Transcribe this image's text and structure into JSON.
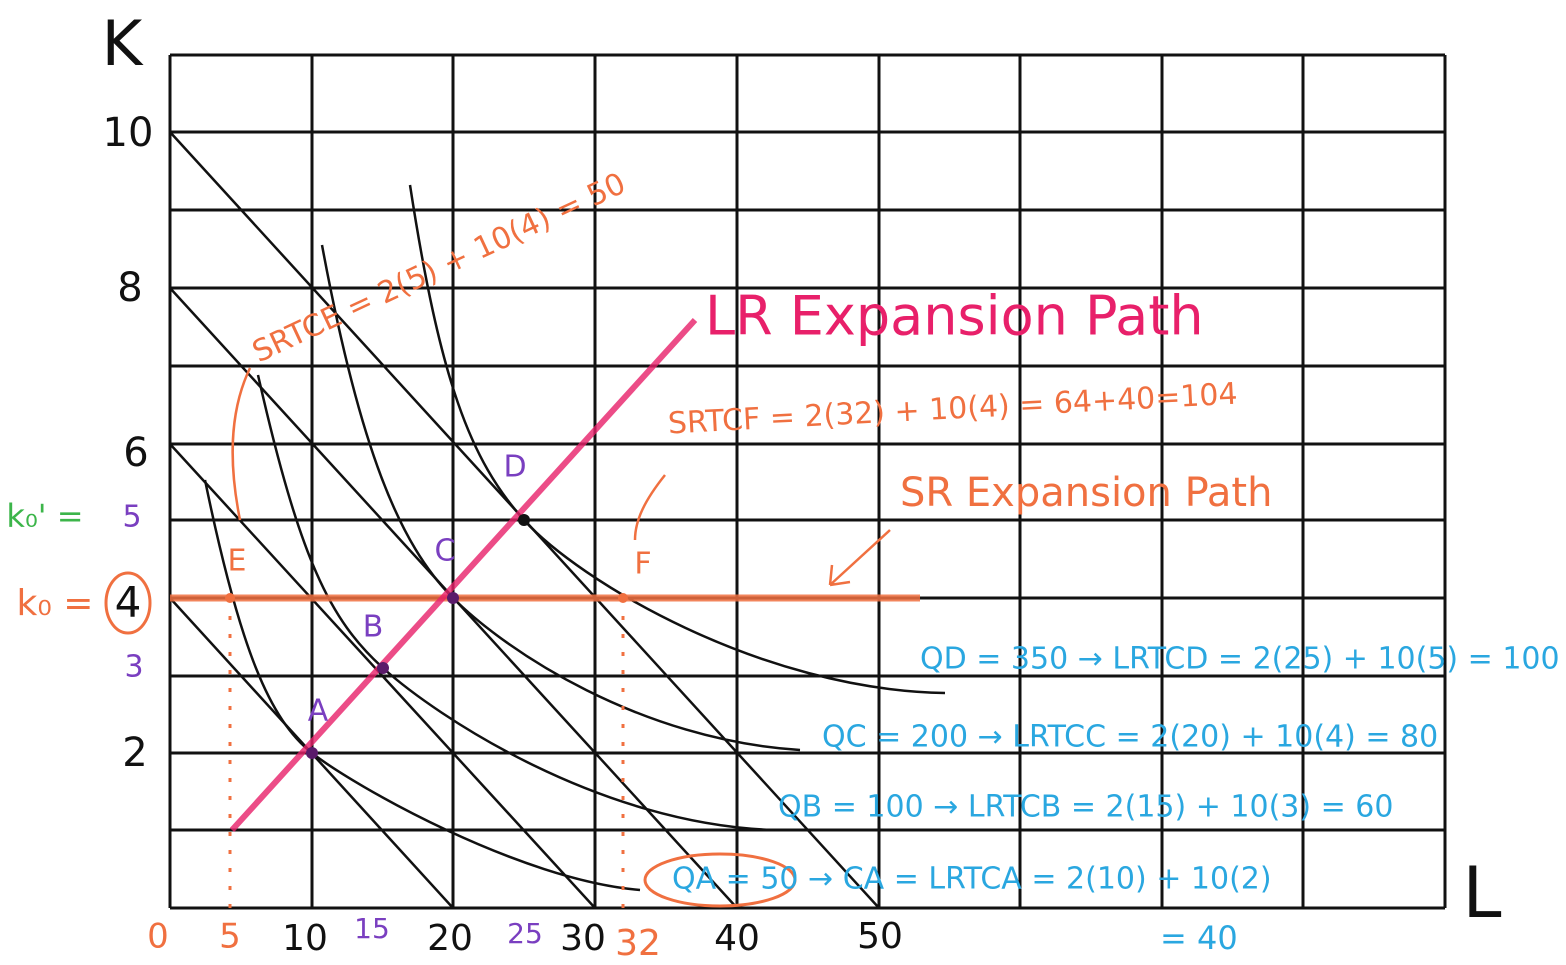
{
  "axes": {
    "y_label": "K",
    "x_label": "L",
    "y_ticks": [
      "10",
      "8",
      "6",
      "2"
    ],
    "y_ticks_minor": [
      "5",
      "3"
    ],
    "x_ticks": [
      "0",
      "5",
      "10",
      "15",
      "20",
      "25",
      "30",
      "32",
      "40",
      "50"
    ],
    "k0_prime": "k₀' =",
    "k0": "k₀ =",
    "k0_value": "4"
  },
  "points": [
    "A",
    "B",
    "C",
    "D",
    "E",
    "F"
  ],
  "annotations": {
    "srtc_e": "SRTCE = 2(5) + 10(4) = 50",
    "lr_path": "LR Expansion Path",
    "srtc_f": "SRTCF = 2(32) + 10(4) = 64+40=104",
    "sr_path": "SR Expansion Path",
    "qd": "QD = 350 → LRTCD = 2(25) + 10(5) = 100",
    "qc": "QC = 200 → LRTCC = 2(20) + 10(4) = 80",
    "qb": "QB = 100 → LRTCB = 2(15) + 10(3) = 60",
    "qa": "QA = 50 → CA = LRTCA = 2(10) + 10(2)",
    "qa_total": "= 40"
  }
}
